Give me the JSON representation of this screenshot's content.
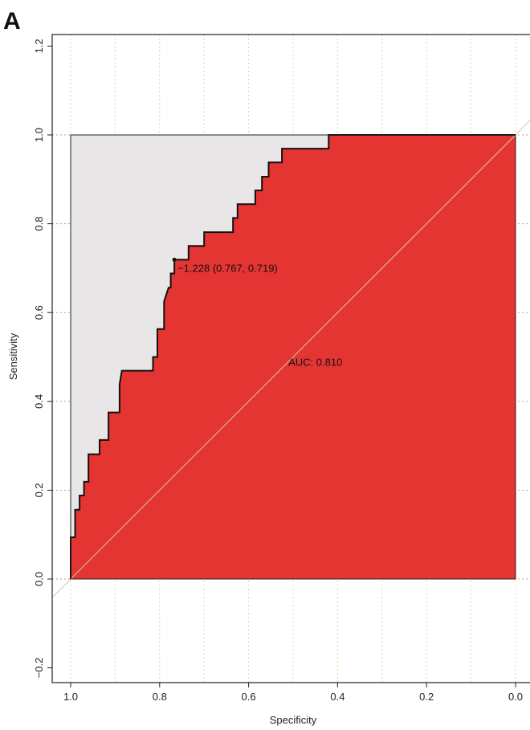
{
  "panel_label": "A",
  "chart_data": {
    "type": "area",
    "title": "",
    "xlabel": "Specificity",
    "ylabel": "Sensitivity",
    "xlim": [
      1.0,
      0.0
    ],
    "ylim": [
      -0.2,
      1.2
    ],
    "x_reversed": true,
    "x_ticks": [
      1.0,
      0.8,
      0.6,
      0.4,
      0.2,
      0.0
    ],
    "x_tick_labels": [
      "1.0",
      "0.8",
      "0.6",
      "0.4",
      "0.2",
      "0.0"
    ],
    "y_ticks": [
      -0.2,
      0.0,
      0.2,
      0.4,
      0.6,
      0.8,
      1.0,
      1.2
    ],
    "y_tick_labels": [
      "−0.2",
      "0.0",
      "0.2",
      "0.4",
      "0.6",
      "0.8",
      "1.0",
      "1.2"
    ],
    "vertical_grid": [
      1.0,
      0.9,
      0.8,
      0.7,
      0.6,
      0.5,
      0.4,
      0.3,
      0.2,
      0.1,
      0.0
    ],
    "horizontal_grid": [
      0.0,
      0.2,
      0.4,
      0.6,
      0.8,
      1.0
    ],
    "auc_polygon_color": "#e8e6e6",
    "auc_fill_color": "#e53533",
    "curve_color": "#111111",
    "diagonal_color": "#c8c8c8",
    "grid_vertical_color": "#d9d98c",
    "grid_horizontal_color": "#e08a8a",
    "roc_points": [
      [
        1.0,
        0.0
      ],
      [
        1.0,
        0.094
      ],
      [
        0.99,
        0.094
      ],
      [
        0.99,
        0.156
      ],
      [
        0.98,
        0.156
      ],
      [
        0.98,
        0.188
      ],
      [
        0.97,
        0.188
      ],
      [
        0.97,
        0.219
      ],
      [
        0.96,
        0.219
      ],
      [
        0.96,
        0.281
      ],
      [
        0.935,
        0.281
      ],
      [
        0.935,
        0.313
      ],
      [
        0.915,
        0.313
      ],
      [
        0.915,
        0.375
      ],
      [
        0.89,
        0.375
      ],
      [
        0.89,
        0.438
      ],
      [
        0.885,
        0.469
      ],
      [
        0.815,
        0.469
      ],
      [
        0.815,
        0.5
      ],
      [
        0.805,
        0.5
      ],
      [
        0.805,
        0.563
      ],
      [
        0.79,
        0.563
      ],
      [
        0.79,
        0.625
      ],
      [
        0.78,
        0.656
      ],
      [
        0.775,
        0.656
      ],
      [
        0.775,
        0.688
      ],
      [
        0.767,
        0.688
      ],
      [
        0.767,
        0.719
      ],
      [
        0.735,
        0.719
      ],
      [
        0.735,
        0.75
      ],
      [
        0.7,
        0.75
      ],
      [
        0.7,
        0.781
      ],
      [
        0.635,
        0.781
      ],
      [
        0.635,
        0.813
      ],
      [
        0.625,
        0.813
      ],
      [
        0.625,
        0.844
      ],
      [
        0.585,
        0.844
      ],
      [
        0.585,
        0.875
      ],
      [
        0.57,
        0.875
      ],
      [
        0.57,
        0.906
      ],
      [
        0.555,
        0.906
      ],
      [
        0.555,
        0.938
      ],
      [
        0.525,
        0.938
      ],
      [
        0.525,
        0.969
      ],
      [
        0.42,
        0.969
      ],
      [
        0.42,
        1.0
      ],
      [
        0.0,
        1.0
      ]
    ],
    "best_threshold": {
      "threshold": -1.228,
      "specificity": 0.767,
      "sensitivity": 0.719
    },
    "annotations": {
      "threshold_label": "−1.228 (0.767, 0.719)",
      "auc_label": "AUC: 0.810"
    },
    "auc": 0.81
  }
}
